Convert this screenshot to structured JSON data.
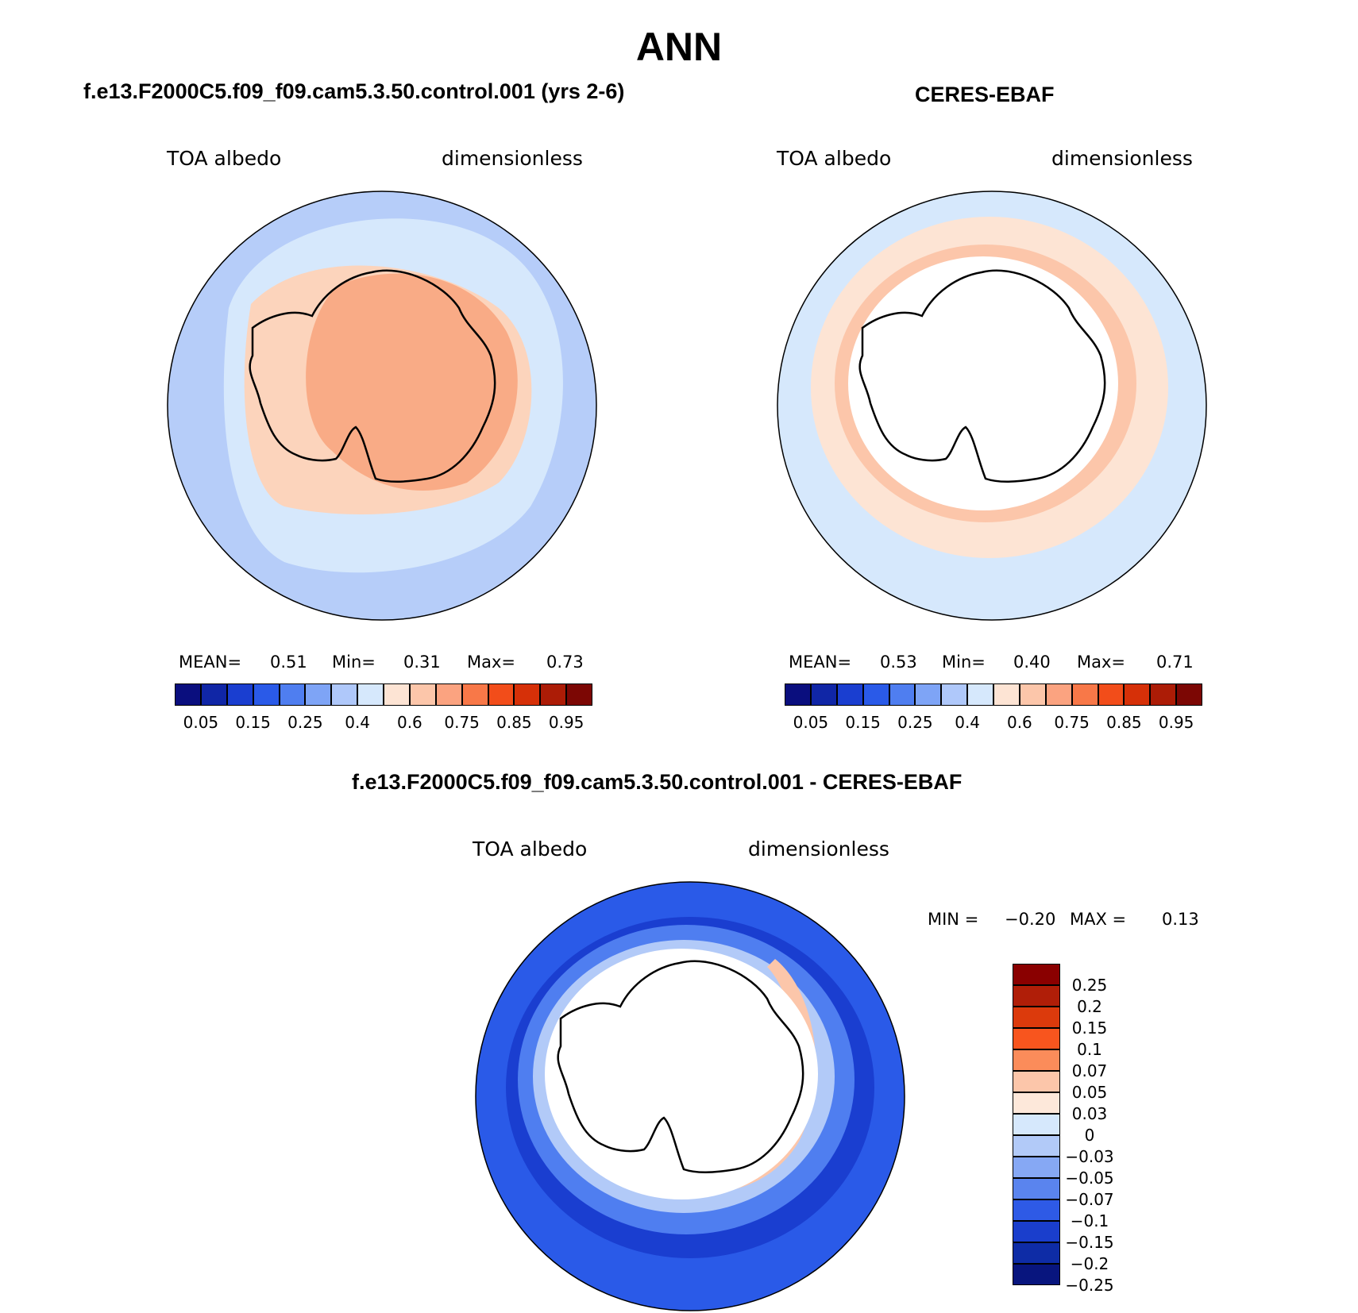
{
  "figure": {
    "title": "ANN"
  },
  "panels": [
    {
      "title": "f.e13.F2000C5.f09_f09.cam5.3.50.control.001 (yrs 2-6)",
      "variable": "TOA albedo",
      "units": "dimensionless",
      "stats": {
        "mean_label": "MEAN=",
        "mean": "0.51",
        "min_label": "Min=",
        "min": "0.31",
        "max_label": "Max=",
        "max": "0.73"
      }
    },
    {
      "title": "CERES-EBAF",
      "variable": "TOA albedo",
      "units": "dimensionless",
      "stats": {
        "mean_label": "MEAN=",
        "mean": "0.53",
        "min_label": "Min=",
        "min": "0.40",
        "max_label": "Max=",
        "max": "0.71"
      }
    },
    {
      "title": "f.e13.F2000C5.f09_f09.cam5.3.50.control.001 - CERES-EBAF",
      "variable": "TOA albedo",
      "units": "dimensionless",
      "stats": {
        "min_label": "MIN =",
        "min": "−0.20",
        "max_label": "MAX =",
        "max": "0.13"
      }
    }
  ],
  "colorbar_abs": {
    "colors": [
      "#0a0e7e",
      "#1026a6",
      "#1a3ed0",
      "#2a5ae8",
      "#4f7ef0",
      "#7ea4f6",
      "#afc8fa",
      "#d6e8fc",
      "#fde4d4",
      "#fcc6aa",
      "#fba380",
      "#f87848",
      "#f24d1a",
      "#d63008",
      "#ac1c06",
      "#7c0704"
    ],
    "ticks": [
      "0.05",
      "0.15",
      "0.25",
      "0.4",
      "0.6",
      "0.75",
      "0.85",
      "0.95"
    ]
  },
  "colorbar_diff": {
    "colors": [
      "#8a0000",
      "#b01e08",
      "#dc3a0c",
      "#f8551e",
      "#fb8c5a",
      "#fcc6aa",
      "#fde8da",
      "#d6e8fc",
      "#b2caf8",
      "#86a8f4",
      "#5a84ee",
      "#2e5ae6",
      "#1a3ecc",
      "#0e2ca6",
      "#08157e"
    ],
    "ticks": [
      "0.25",
      "0.2",
      "0.15",
      "0.1",
      "0.07",
      "0.05",
      "0.03",
      "0",
      "−0.03",
      "−0.05",
      "−0.07",
      "−0.1",
      "−0.15",
      "−0.2",
      "−0.25"
    ]
  }
}
